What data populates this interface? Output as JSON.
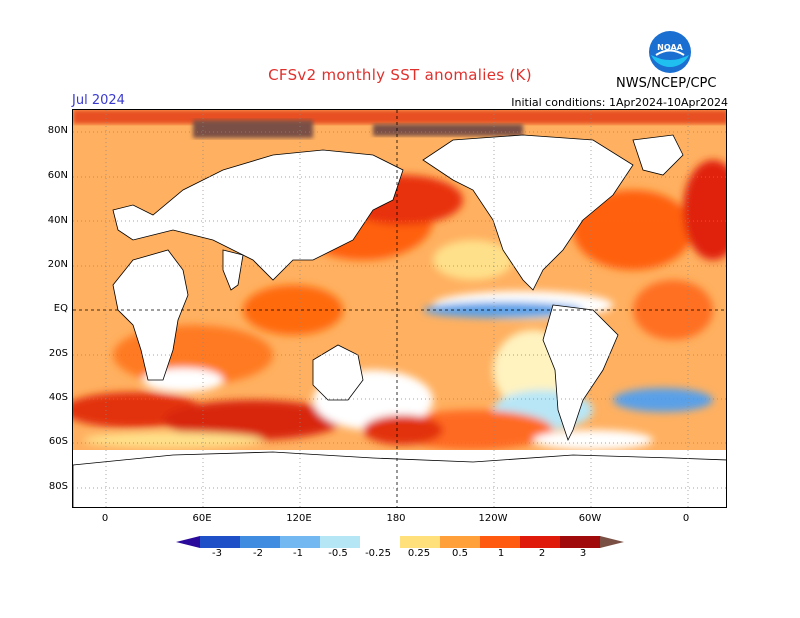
{
  "title": "CFSv2 monthly SST anomalies (K)",
  "month": "Jul 2024",
  "initial_conditions": "Initial conditions: 1Apr2024-10Apr2024",
  "agency": "NWS/NCEP/CPC",
  "logo_text": "NOAA",
  "lat_labels": [
    "80N",
    "60N",
    "40N",
    "20N",
    "EQ",
    "20S",
    "40S",
    "60S",
    "80S"
  ],
  "lon_labels": [
    "0",
    "60E",
    "120E",
    "180",
    "120W",
    "60W",
    "0"
  ],
  "legend_labels": [
    "-3",
    "-2",
    "-1",
    "-0.5",
    "-0.25",
    "0.25",
    "0.5",
    "1",
    "2",
    "3"
  ],
  "legend_colors": [
    "#2a0a9a",
    "#1f50c8",
    "#3f8ce0",
    "#73b8f0",
    "#b5e6f6",
    "#ffffff",
    "#ffe07a",
    "#ffa03a",
    "#ff5a10",
    "#e01a0a",
    "#a00a0a",
    "#7a5045"
  ],
  "colors": {
    "land": "#ffffff",
    "title": "#e0302c",
    "month": "#3a3ad0"
  }
}
